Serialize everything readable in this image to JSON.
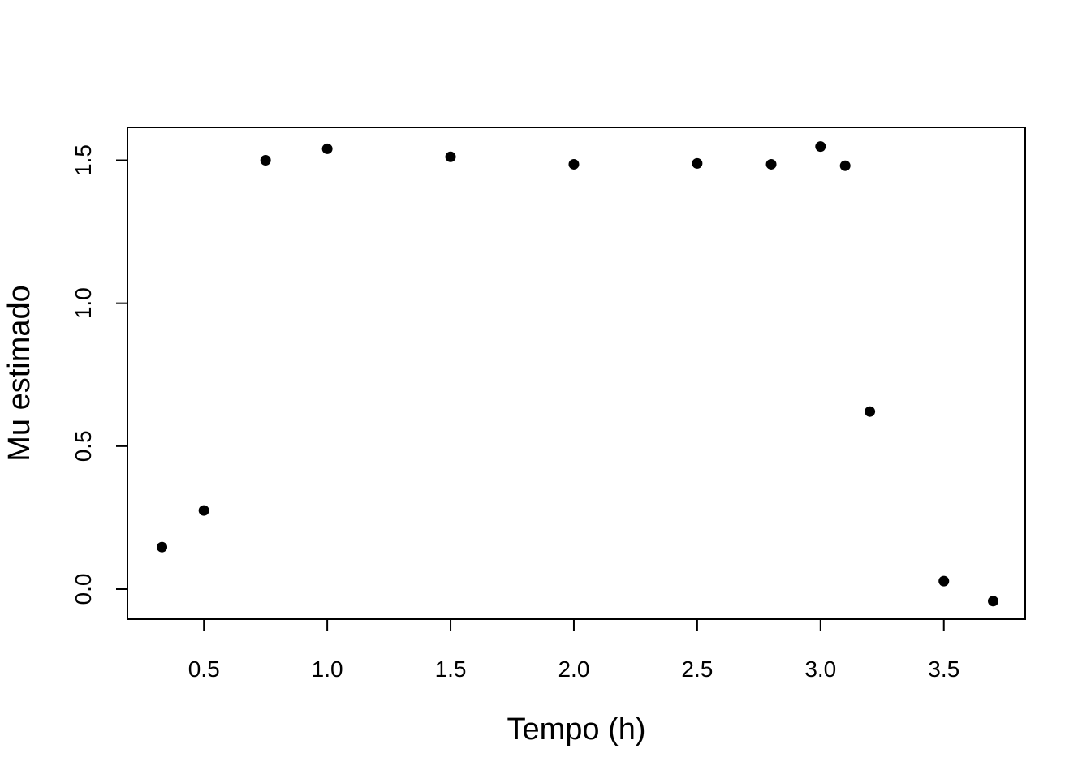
{
  "chart_data": {
    "type": "scatter",
    "title": "",
    "xlabel": "Tempo (h)",
    "ylabel": "Mu estimado",
    "xlim": [
      0.19,
      3.83
    ],
    "ylim": [
      -0.105,
      1.615
    ],
    "xticks": [
      0.5,
      1.0,
      1.5,
      2.0,
      2.5,
      3.0,
      3.5
    ],
    "xtick_labels": [
      "0.5",
      "1.0",
      "1.5",
      "2.0",
      "2.5",
      "3.0",
      "3.5"
    ],
    "yticks": [
      0.0,
      0.5,
      1.0,
      1.5
    ],
    "ytick_labels": [
      "0.0",
      "0.5",
      "1.0",
      "1.5"
    ],
    "grid": false,
    "legend": "none",
    "marker_color": "#000000",
    "points": [
      {
        "x": 0.33,
        "y": 0.147
      },
      {
        "x": 0.5,
        "y": 0.275
      },
      {
        "x": 0.75,
        "y": 1.5
      },
      {
        "x": 1.0,
        "y": 1.54
      },
      {
        "x": 1.5,
        "y": 1.512
      },
      {
        "x": 2.0,
        "y": 1.486
      },
      {
        "x": 2.5,
        "y": 1.489
      },
      {
        "x": 2.8,
        "y": 1.486
      },
      {
        "x": 3.0,
        "y": 1.548
      },
      {
        "x": 3.1,
        "y": 1.481
      },
      {
        "x": 3.2,
        "y": 0.621
      },
      {
        "x": 3.5,
        "y": 0.028
      },
      {
        "x": 3.7,
        "y": -0.042
      }
    ]
  }
}
